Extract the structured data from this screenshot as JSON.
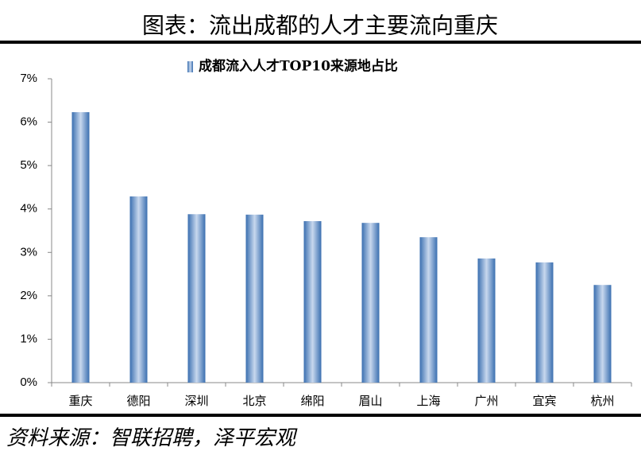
{
  "chart_data": {
    "type": "bar",
    "title": "图表：流出成都的人才主要流向重庆",
    "source": "资料来源：智联招聘，泽平宏观",
    "categories": [
      "重庆",
      "德阳",
      "深圳",
      "北京",
      "绵阳",
      "眉山",
      "上海",
      "广州",
      "宜宾",
      "杭州"
    ],
    "series": [
      {
        "name": "成都流入人才TOP10来源地占比",
        "color": "#3a6fb0",
        "values": [
          6.23,
          4.29,
          3.88,
          3.87,
          3.72,
          3.68,
          3.35,
          2.86,
          2.77,
          2.25
        ]
      }
    ],
    "ylim": [
      0,
      7
    ],
    "yticks": [
      {
        "value": 0,
        "label": "0%"
      },
      {
        "value": 1,
        "label": "1%"
      },
      {
        "value": 2,
        "label": "2%"
      },
      {
        "value": 3,
        "label": "3%"
      },
      {
        "value": 4,
        "label": "4%"
      },
      {
        "value": 5,
        "label": "5%"
      },
      {
        "value": 6,
        "label": "6%"
      },
      {
        "value": 7,
        "label": "7%"
      }
    ],
    "grid": false
  }
}
